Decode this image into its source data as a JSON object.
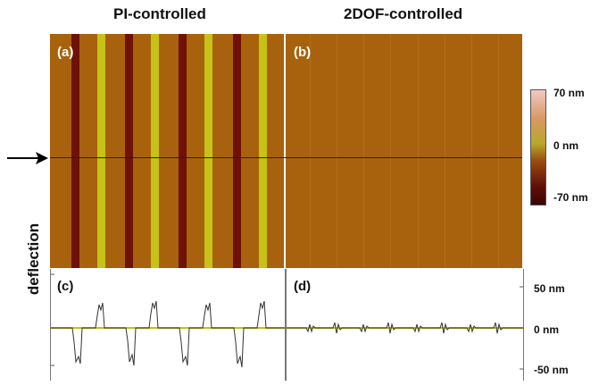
{
  "titles": {
    "left": "PI-controlled",
    "right": "2DOF-controlled"
  },
  "panels": {
    "a": "(a)",
    "b": "(b)",
    "c": "(c)",
    "d": "(d)"
  },
  "side_label": "deflection",
  "colorbar": {
    "max_label": "70 nm",
    "mid_label": "0 nm",
    "min_label": "-70 nm",
    "colors": [
      "#f2c8c4",
      "#d89862",
      "#b6a82a",
      "#9a4a10",
      "#5e0e06"
    ]
  },
  "profile_axis": {
    "top_label": "50 nm",
    "mid_label": "0 nm",
    "bottom_label": "-50 nm"
  },
  "colors": {
    "background": "#a8620e",
    "dark_stripe": "#6e1208",
    "light_stripe": "#c6c216",
    "profile_zero_line": "#c6c216"
  }
}
